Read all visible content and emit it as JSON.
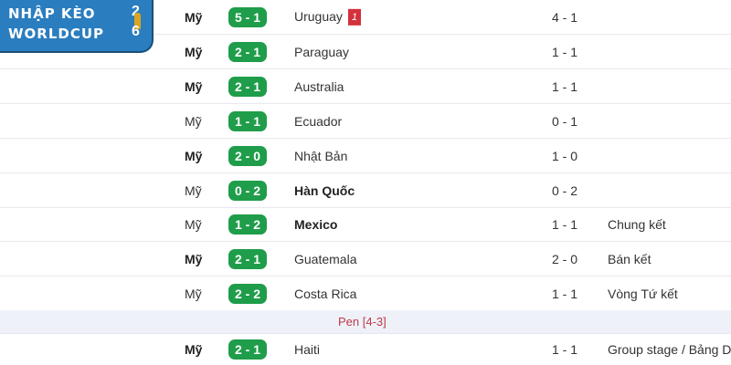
{
  "logo": {
    "line1": "NHẬP KÈO",
    "line2": "WORLDCUP",
    "year_top": "2",
    "year_bottom": "6"
  },
  "matches": [
    {
      "home": "Mỹ",
      "home_bold": true,
      "score": "5 - 1",
      "away": "Uruguay",
      "away_bold": false,
      "red_cards": "1",
      "ht": "4 - 1",
      "stage": ""
    },
    {
      "home": "Mỹ",
      "home_bold": true,
      "score": "2 - 1",
      "away": "Paraguay",
      "away_bold": false,
      "ht": "1 - 1",
      "stage": ""
    },
    {
      "home": "Mỹ",
      "home_bold": true,
      "score": "2 - 1",
      "away": "Australia",
      "away_bold": false,
      "ht": "1 - 1",
      "stage": ""
    },
    {
      "home": "Mỹ",
      "home_bold": false,
      "score": "1 - 1",
      "away": "Ecuador",
      "away_bold": false,
      "ht": "0 - 1",
      "stage": ""
    },
    {
      "home": "Mỹ",
      "home_bold": true,
      "score": "2 - 0",
      "away": "Nhật Bản",
      "away_bold": false,
      "ht": "1 - 0",
      "stage": ""
    },
    {
      "home": "Mỹ",
      "home_bold": false,
      "score": "0 - 2",
      "away": "Hàn Quốc",
      "away_bold": true,
      "ht": "0 - 2",
      "stage": ""
    },
    {
      "home": "Mỹ",
      "home_bold": false,
      "score": "1 - 2",
      "away": "Mexico",
      "away_bold": true,
      "ht": "1 - 1",
      "stage": "Chung kết"
    },
    {
      "home": "Mỹ",
      "home_bold": true,
      "score": "2 - 1",
      "away": "Guatemala",
      "away_bold": false,
      "ht": "2 - 0",
      "stage": "Bán kết"
    },
    {
      "home": "Mỹ",
      "home_bold": false,
      "score": "2 - 2",
      "away": "Costa Rica",
      "away_bold": false,
      "ht": "1 - 1",
      "stage": "Vòng Tứ kết"
    },
    {
      "home": "Mỹ",
      "home_bold": true,
      "score": "2 - 1",
      "away": "Haiti",
      "away_bold": false,
      "ht": "1 - 1",
      "stage": "Group stage / Bảng D"
    }
  ],
  "penalty_note": "Pen [4-3]",
  "colors": {
    "score_badge": "#1f9d4a",
    "red_card": "#d3313c",
    "logo_bg": "#2a7dbf"
  }
}
